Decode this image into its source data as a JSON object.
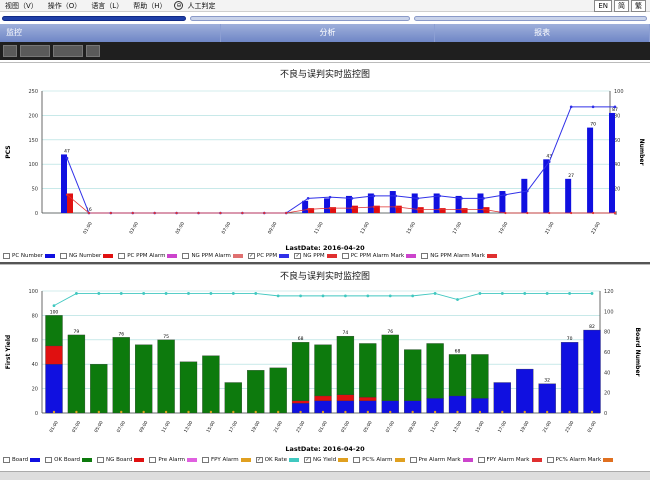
{
  "menu": {
    "items": [
      "视图（V）",
      "操作（O）",
      "语言（L）",
      "帮助（H）"
    ],
    "circle_icon": "circle-icon",
    "manual_label": "人工判定",
    "lang": [
      "EN",
      "简",
      "繁"
    ]
  },
  "nav": {
    "tabs": [
      "监控",
      "分析",
      "报表"
    ]
  },
  "colors": {
    "pc_bar": "#1010e0",
    "ng_bar": "#e01010",
    "ok_bar": "#0d7a0d",
    "line_blue": "#3030e8",
    "line_cyan": "#40c8c0",
    "grid": "#9fd8d8"
  },
  "chart1": {
    "title": "不良与误判实时监控图",
    "xlabel": "LastDate: 2016-04-20",
    "ylabel_left": "PCS",
    "ylabel_right": "Number",
    "legend": [
      "PC Number",
      "NG Number",
      "PC PPM Alarm",
      "NG PPM Alarm",
      "PC PPM",
      "NG PPM",
      "PC PPM Alarm Mark",
      "NG PPM Alarm Mark"
    ]
  },
  "chart2": {
    "title": "不良与误判实时监控图",
    "xlabel": "LastDate: 2016-04-20",
    "ylabel_left": "First Yield",
    "ylabel_right": "Board Number",
    "legend": [
      "Board",
      "OK Board",
      "NG Board",
      "Pre Alarm",
      "FPY Alarm",
      "OK Rate",
      "NG Yield",
      "PC% Alarm",
      "Pre Alarm Mark",
      "FPY Alarm Mark",
      "PC% Alarm Mark"
    ]
  },
  "chart_data": [
    {
      "type": "bar",
      "title": "不良与误判实时监控图",
      "xlabel": "LastDate: 2016-04-20",
      "ylabel": "PCS",
      "y2label": "Number",
      "ylim": [
        0,
        250
      ],
      "y2lim": [
        0,
        100
      ],
      "yticks": [
        "0",
        "50",
        "100",
        "150",
        "200",
        "250"
      ],
      "y2ticks": [
        "0",
        "20",
        "40",
        "60",
        "80",
        "100"
      ],
      "xticks": [
        "01:00",
        "03:00",
        "05:00",
        "07:00",
        "09:00",
        "11:00",
        "13:00",
        "15:00",
        "17:00",
        "19:00",
        "21:00",
        "23:00"
      ],
      "series": [
        {
          "name": "PC Number",
          "values": [
            120,
            0,
            0,
            0,
            0,
            0,
            0,
            0,
            0,
            0,
            0,
            25,
            30,
            35,
            40,
            45,
            40,
            40,
            35,
            40,
            45,
            70,
            110,
            70,
            175,
            205
          ]
        },
        {
          "name": "NG Number",
          "values": [
            40,
            0,
            0,
            0,
            0,
            0,
            0,
            0,
            0,
            0,
            0,
            10,
            12,
            15,
            15,
            15,
            12,
            10,
            10,
            12,
            0,
            0,
            0,
            0,
            0,
            0
          ]
        },
        {
          "name": "PC PPM",
          "values": [
            45,
            0,
            0,
            0,
            0,
            0,
            0,
            0,
            0,
            0,
            0,
            12,
            13,
            12,
            14,
            14,
            12,
            14,
            12,
            12,
            15,
            18,
            42,
            87,
            87,
            87
          ]
        },
        {
          "name": "NG PPM",
          "values": [
            15,
            0,
            0,
            0,
            0,
            0,
            0,
            0,
            0,
            0,
            0,
            3,
            4,
            4,
            5,
            5,
            3,
            3,
            3,
            3,
            0,
            0,
            0,
            0,
            0,
            0
          ]
        }
      ],
      "data_labels": [
        "47",
        "16",
        "",
        "",
        "",
        "",
        "",
        "",
        "",
        "",
        "",
        "",
        "",
        "",
        "",
        "",
        "",
        "",
        "",
        "",
        "",
        "",
        "43",
        "27",
        "70",
        "87"
      ]
    },
    {
      "type": "bar",
      "title": "不良与误判实时监控图",
      "xlabel": "LastDate: 2016-04-20",
      "ylabel": "First Yield",
      "y2label": "Board Number",
      "ylim": [
        0,
        100
      ],
      "y2lim": [
        0,
        120
      ],
      "yticks": [
        "0",
        "20",
        "40",
        "60",
        "80",
        "100"
      ],
      "y2ticks": [
        "0",
        "20",
        "40",
        "60",
        "80",
        "100",
        "120"
      ],
      "series": [
        {
          "name": "Board",
          "values": [
            40,
            0,
            0,
            0,
            0,
            0,
            0,
            0,
            0,
            0,
            0,
            8,
            10,
            10,
            10,
            10,
            10,
            12,
            14,
            12,
            25,
            36,
            24,
            58,
            68
          ]
        },
        {
          "name": "OK Board",
          "values": [
            25,
            64,
            40,
            62,
            56,
            60,
            42,
            47,
            25,
            35,
            37,
            48,
            42,
            48,
            44,
            54,
            42,
            45,
            34,
            36,
            0,
            0,
            0,
            0,
            0
          ]
        },
        {
          "name": "NG Board",
          "values": [
            15,
            0,
            0,
            0,
            0,
            0,
            0,
            0,
            0,
            0,
            0,
            2,
            4,
            5,
            3,
            0,
            0,
            0,
            0,
            0,
            0,
            0,
            0,
            0,
            0
          ]
        },
        {
          "name": "OK Rate",
          "values": [
            88,
            98,
            98,
            98,
            98,
            98,
            98,
            98,
            98,
            98,
            96,
            96,
            96,
            96,
            96,
            96,
            96,
            98,
            93,
            98,
            98,
            98,
            98,
            98,
            98
          ]
        }
      ],
      "data_labels": [
        "100",
        "79",
        "",
        "76",
        "",
        "75",
        "",
        "",
        "",
        "",
        "",
        "68",
        "",
        "74",
        "",
        "76",
        "",
        "",
        "68",
        "",
        "",
        "",
        "32",
        "70",
        "82"
      ]
    }
  ]
}
